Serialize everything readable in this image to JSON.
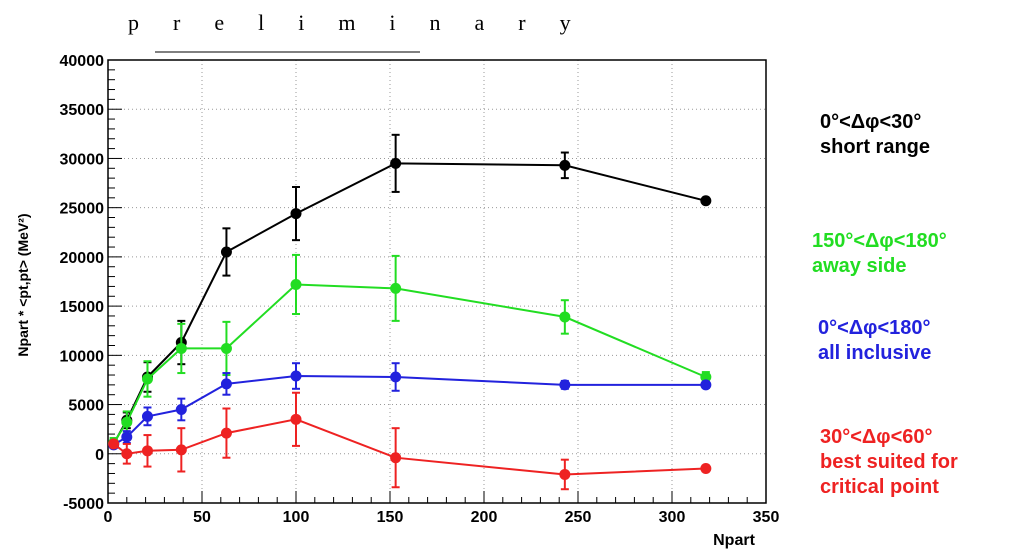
{
  "page": {
    "watermark": "preliminary"
  },
  "chart_data": {
    "type": "line",
    "title": "",
    "xlabel": "Npart",
    "ylabel": "Npart * <pt,pt> (MeV²)",
    "xlim": [
      0,
      350
    ],
    "ylim": [
      -5000,
      40000
    ],
    "xticks": [
      "0",
      "50",
      "100",
      "150",
      "200",
      "250",
      "300",
      "350"
    ],
    "yticks": [
      "-5000",
      "0",
      "5000",
      "10000",
      "15000",
      "20000",
      "25000",
      "30000",
      "35000",
      "40000"
    ],
    "grid": true,
    "legend_placement": "right",
    "series": [
      {
        "legend_line1": "0°<Δφ<30°",
        "legend_line2": "short range",
        "legend_line3": "",
        "color": "#000000",
        "x": [
          3,
          10,
          21,
          39,
          63,
          100,
          153,
          243,
          318
        ],
        "y": [
          1000,
          3400,
          7800,
          11300,
          20500,
          24400,
          29500,
          29300,
          25700
        ],
        "err": [
          300,
          800,
          1500,
          2200,
          2400,
          2700,
          2900,
          1300,
          200
        ]
      },
      {
        "legend_line1": "150°<Δφ<180°",
        "legend_line2": "away side",
        "legend_line3": "",
        "color": "#22dd22",
        "x": [
          3,
          10,
          21,
          39,
          63,
          100,
          153,
          243,
          318
        ],
        "y": [
          1100,
          3200,
          7600,
          10700,
          10700,
          17200,
          16800,
          13900,
          7800
        ],
        "err": [
          500,
          1100,
          1800,
          2500,
          2700,
          3000,
          3300,
          1700,
          500
        ]
      },
      {
        "legend_line1": "0°<Δφ<180°",
        "legend_line2": "all inclusive",
        "legend_line3": "",
        "color": "#2222dd",
        "x": [
          3,
          10,
          21,
          39,
          63,
          100,
          153,
          243,
          318
        ],
        "y": [
          900,
          1700,
          3800,
          4500,
          7100,
          7900,
          7800,
          7000,
          7000
        ],
        "err": [
          300,
          600,
          900,
          1100,
          1100,
          1300,
          1400,
          400,
          300
        ]
      },
      {
        "legend_line1": "30°<Δφ<60°",
        "legend_line2": "best suited for",
        "legend_line3": "critical point",
        "color": "#ee2222",
        "x": [
          3,
          10,
          21,
          39,
          63,
          100,
          153,
          243,
          318
        ],
        "y": [
          1000,
          0,
          300,
          400,
          2100,
          3500,
          -400,
          -2100,
          -1500
        ],
        "err": [
          300,
          1000,
          1600,
          2200,
          2500,
          2700,
          3000,
          1500,
          300
        ]
      }
    ]
  }
}
